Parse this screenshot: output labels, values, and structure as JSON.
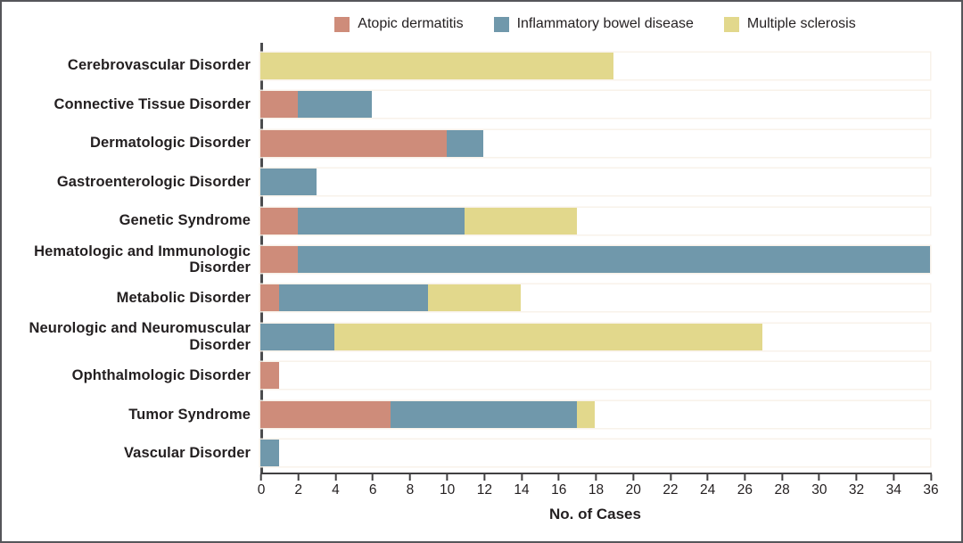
{
  "chart_data": {
    "type": "bar",
    "orientation": "horizontal",
    "stacked": true,
    "title": "",
    "xlabel": "No. of Cases",
    "ylabel": "",
    "xlim": [
      0,
      36
    ],
    "xticks": [
      0,
      2,
      4,
      6,
      8,
      10,
      12,
      14,
      16,
      18,
      20,
      22,
      24,
      26,
      28,
      30,
      32,
      34,
      36
    ],
    "grid": false,
    "legend_position": "top",
    "categories": [
      "Cerebrovascular Disorder",
      "Connective Tissue Disorder",
      "Dermatologic Disorder",
      "Gastroenterologic Disorder",
      "Genetic Syndrome",
      "Hematologic and Immunologic Disorder",
      "Metabolic Disorder",
      "Neurologic and Neuromuscular Disorder",
      "Ophthalmologic Disorder",
      "Tumor Syndrome",
      "Vascular Disorder"
    ],
    "series": [
      {
        "name": "Atopic dermatitis",
        "color": "#CE8C7A",
        "values": [
          0,
          2,
          10,
          0,
          2,
          2,
          1,
          0,
          1,
          7,
          0
        ]
      },
      {
        "name": "Inflammatory bowel disease",
        "color": "#7098AB",
        "values": [
          0,
          4,
          2,
          3,
          9,
          34,
          8,
          4,
          0,
          10,
          1
        ]
      },
      {
        "name": "Multiple sclerosis",
        "color": "#E2D88C",
        "values": [
          19,
          0,
          0,
          0,
          6,
          0,
          5,
          23,
          0,
          1,
          0
        ]
      }
    ],
    "axis_color": "#414042",
    "text_color": "#231f20"
  }
}
